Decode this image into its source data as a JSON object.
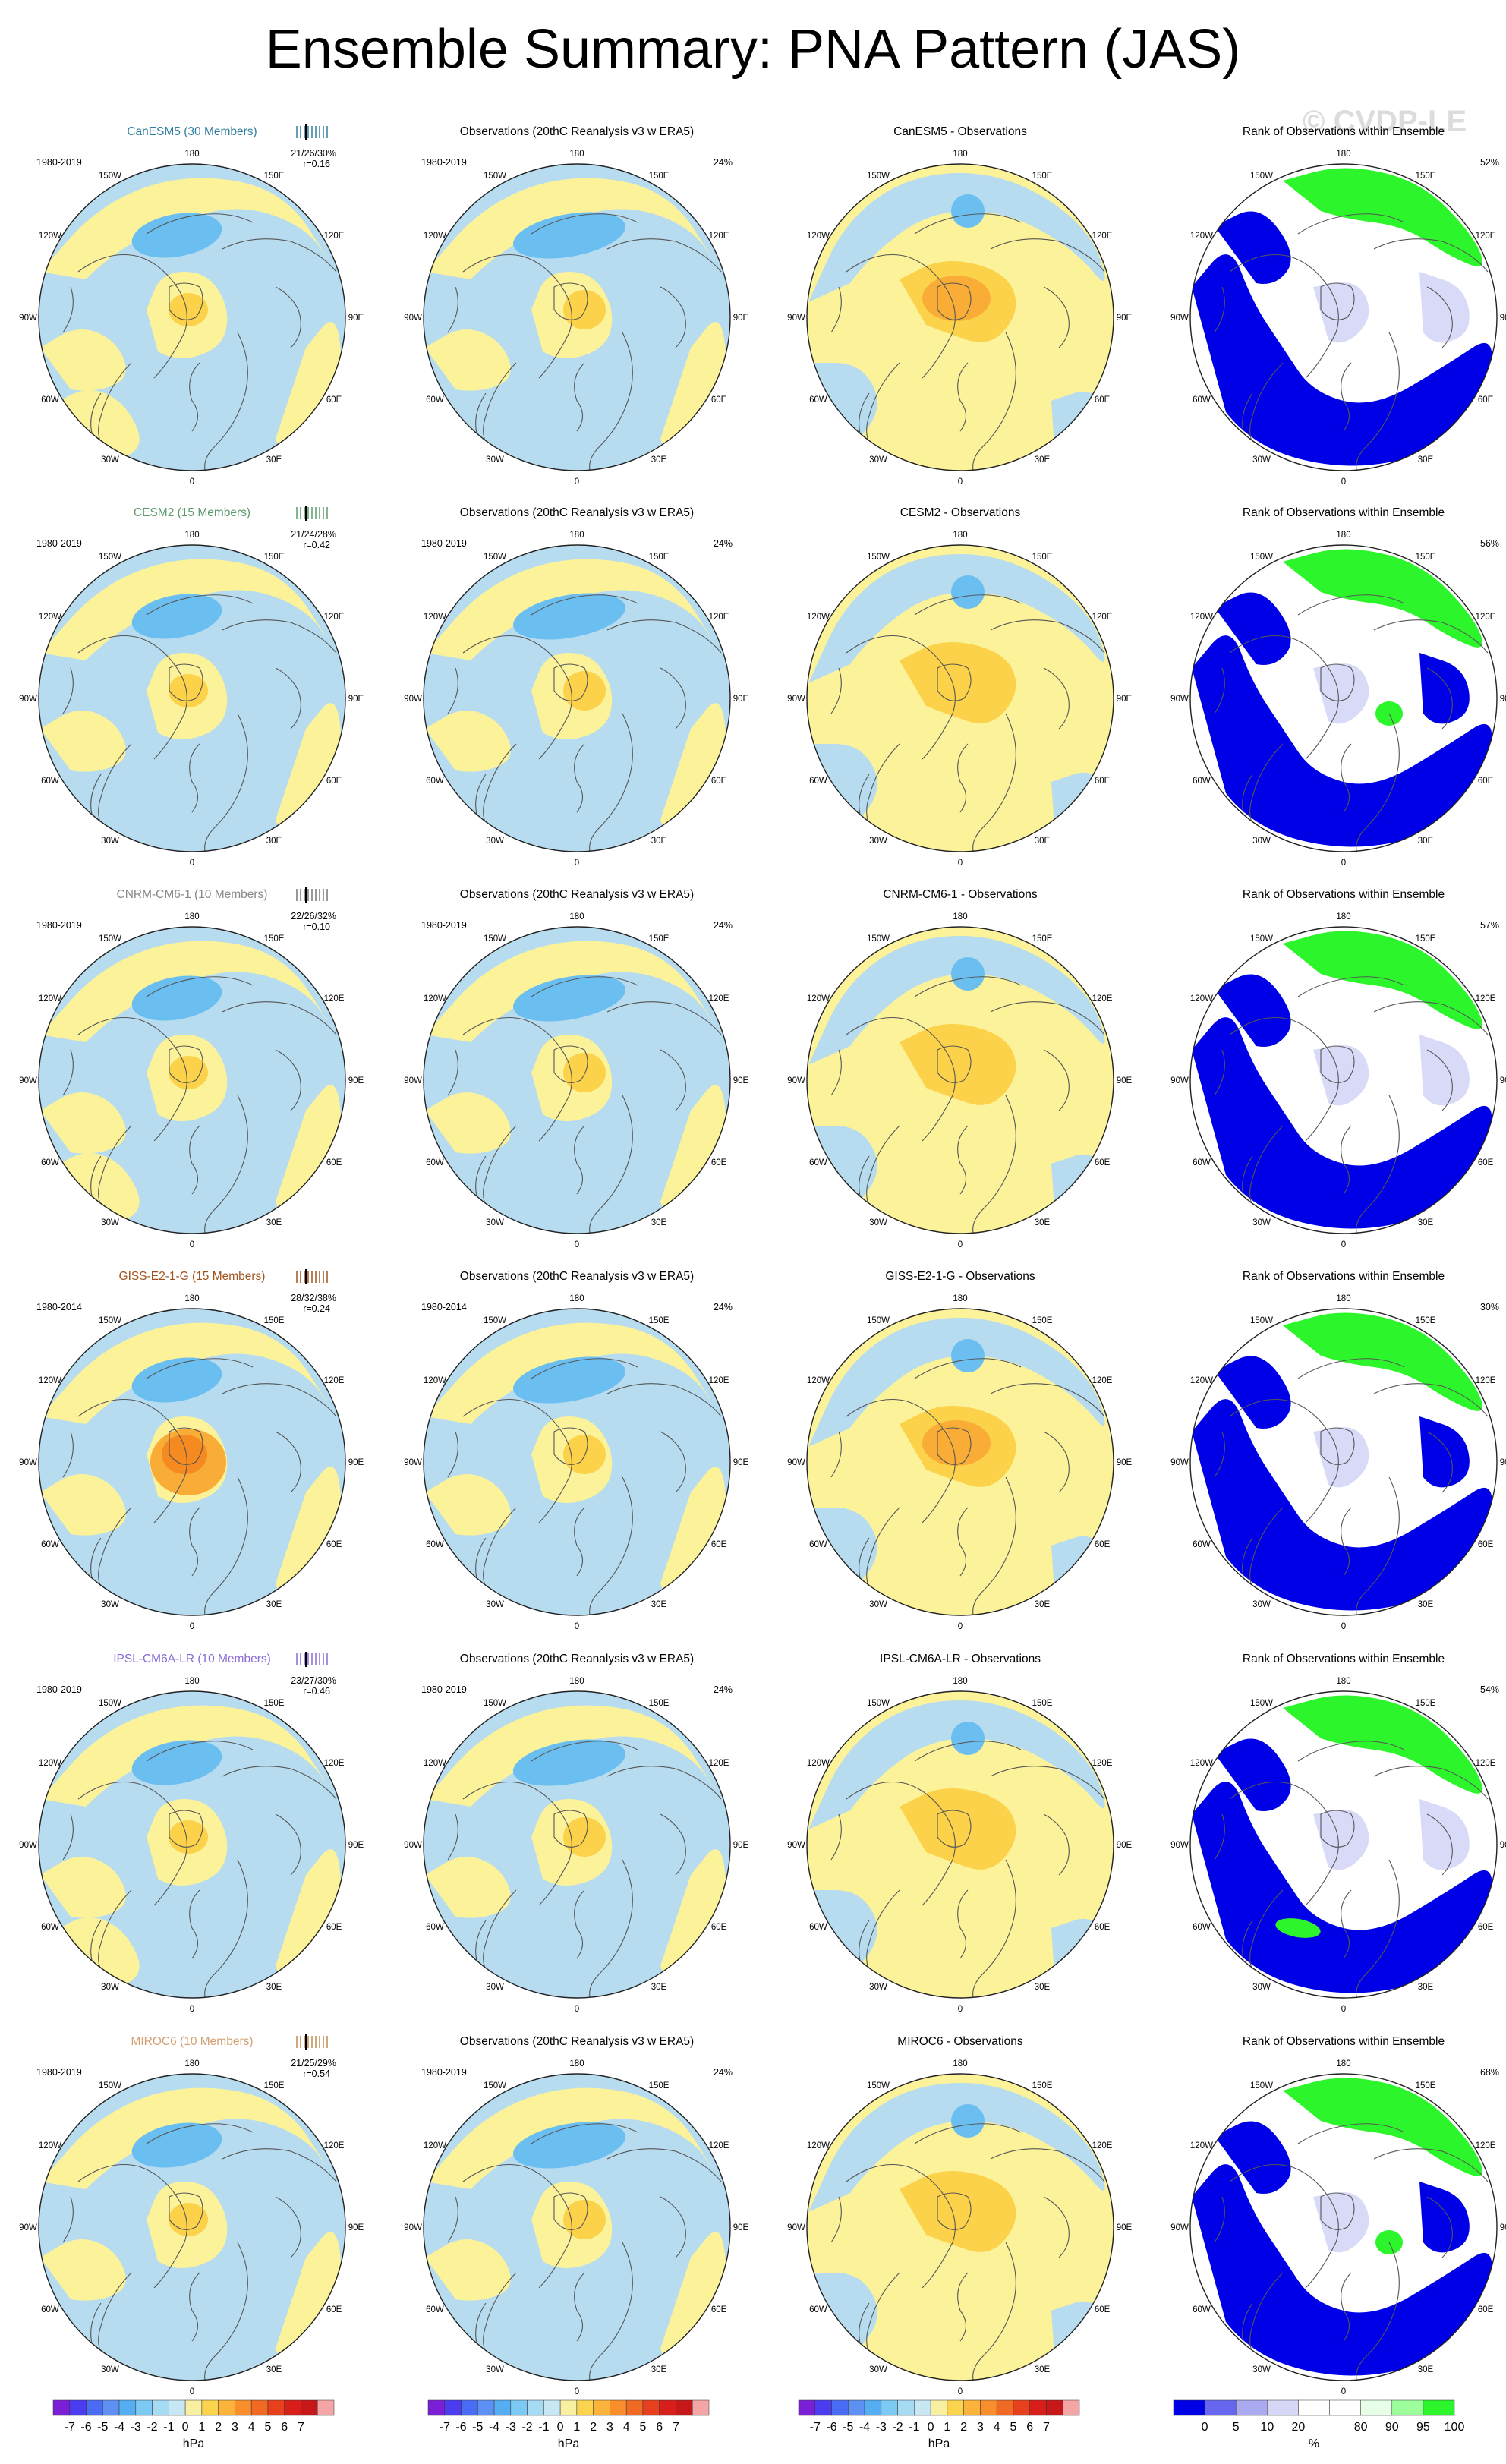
{
  "title": "Ensemble Summary: PNA Pattern (JAS)",
  "watermark": "© CVDP-LE",
  "lon_labels": [
    "180",
    "150E",
    "120E",
    "90E",
    "60E",
    "30E",
    "0",
    "30W",
    "60W",
    "90W",
    "120W",
    "150W"
  ],
  "obs_title": "Observations (20thC Reanalysis v3 w ERA5)",
  "obs_pct": "24%",
  "rank_title": "Rank of Observations within Ensemble",
  "rows": [
    {
      "model": "CanESM5 (30 Members)",
      "model_color": "#2f7f9f",
      "period": "1980-2019",
      "obs_period": "1980-2019",
      "stats": "21/26/30%",
      "r": "r=0.16",
      "diff_title": "CanESM5 - Observations",
      "rank_pct": "52%",
      "tick_color": "#2f7f9f"
    },
    {
      "model": "CESM2 (15 Members)",
      "model_color": "#5b9a6b",
      "period": "1980-2019",
      "obs_period": "1980-2019",
      "stats": "21/24/28%",
      "r": "r=0.42",
      "diff_title": "CESM2 - Observations",
      "rank_pct": "56%",
      "tick_color": "#5b9a6b"
    },
    {
      "model": "CNRM-CM6-1 (10 Members)",
      "model_color": "#888888",
      "period": "1980-2019",
      "obs_period": "1980-2019",
      "stats": "22/26/32%",
      "r": "r=0.10",
      "diff_title": "CNRM-CM6-1 - Observations",
      "rank_pct": "57%",
      "tick_color": "#777777"
    },
    {
      "model": "GISS-E2-1-G (15 Members)",
      "model_color": "#a0521d",
      "period": "1980-2014",
      "obs_period": "1980-2014",
      "stats": "28/32/38%",
      "r": "r=0.24",
      "diff_title": "GISS-E2-1-G - Observations",
      "rank_pct": "30%",
      "tick_color": "#a0521d"
    },
    {
      "model": "IPSL-CM6A-LR (10 Members)",
      "model_color": "#8a6bd6",
      "period": "1980-2019",
      "obs_period": "1980-2019",
      "stats": "23/27/30%",
      "r": "r=0.46",
      "diff_title": "IPSL-CM6A-LR - Observations",
      "rank_pct": "54%",
      "tick_color": "#8a6bd6"
    },
    {
      "model": "MIROC6 (10 Members)",
      "model_color": "#d2a070",
      "period": "1980-2019",
      "obs_period": "1980-2019",
      "stats": "21/25/29%",
      "r": "r=0.54",
      "diff_title": "MIROC6 - Observations",
      "rank_pct": "68%",
      "tick_color": "#c08a55"
    }
  ],
  "colorbars": {
    "hpa": {
      "colors": [
        "#7a1fd6",
        "#4b3cf0",
        "#4a6cf5",
        "#5e8ff2",
        "#55aef2",
        "#7ccaf3",
        "#a6dbf4",
        "#c8e7f4",
        "#f8f0a0",
        "#fbd34d",
        "#fbb33b",
        "#f88e2c",
        "#f06a23",
        "#e8401c",
        "#d81e1a",
        "#c61818",
        "#f4a6a6"
      ],
      "labels": [
        "-7",
        "-6",
        "-5",
        "-4",
        "-3",
        "-2",
        "-1",
        "0",
        "1",
        "2",
        "3",
        "4",
        "5",
        "6",
        "7"
      ],
      "unit": "hPa"
    },
    "rank": {
      "colors": [
        "#0000e6",
        "#6666ee",
        "#aaaaf0",
        "#d6d6f6",
        "#ffffff",
        "#ffffff",
        "#e6ffe6",
        "#9cff9c",
        "#2cf52c"
      ],
      "labels": [
        "0",
        "5",
        "10",
        "20",
        "80",
        "90",
        "95",
        "100"
      ],
      "unit": "%"
    }
  },
  "colors": {
    "blue_light": "#b7dcf0",
    "yellow": "#fbf29a",
    "blue_mid": "#6bbef0",
    "orange_light": "#fbd24a",
    "orange": "#f9ad37",
    "rank_blue": "#0000e6",
    "rank_lav": "#d9daf8",
    "rank_green": "#2cf52c"
  }
}
